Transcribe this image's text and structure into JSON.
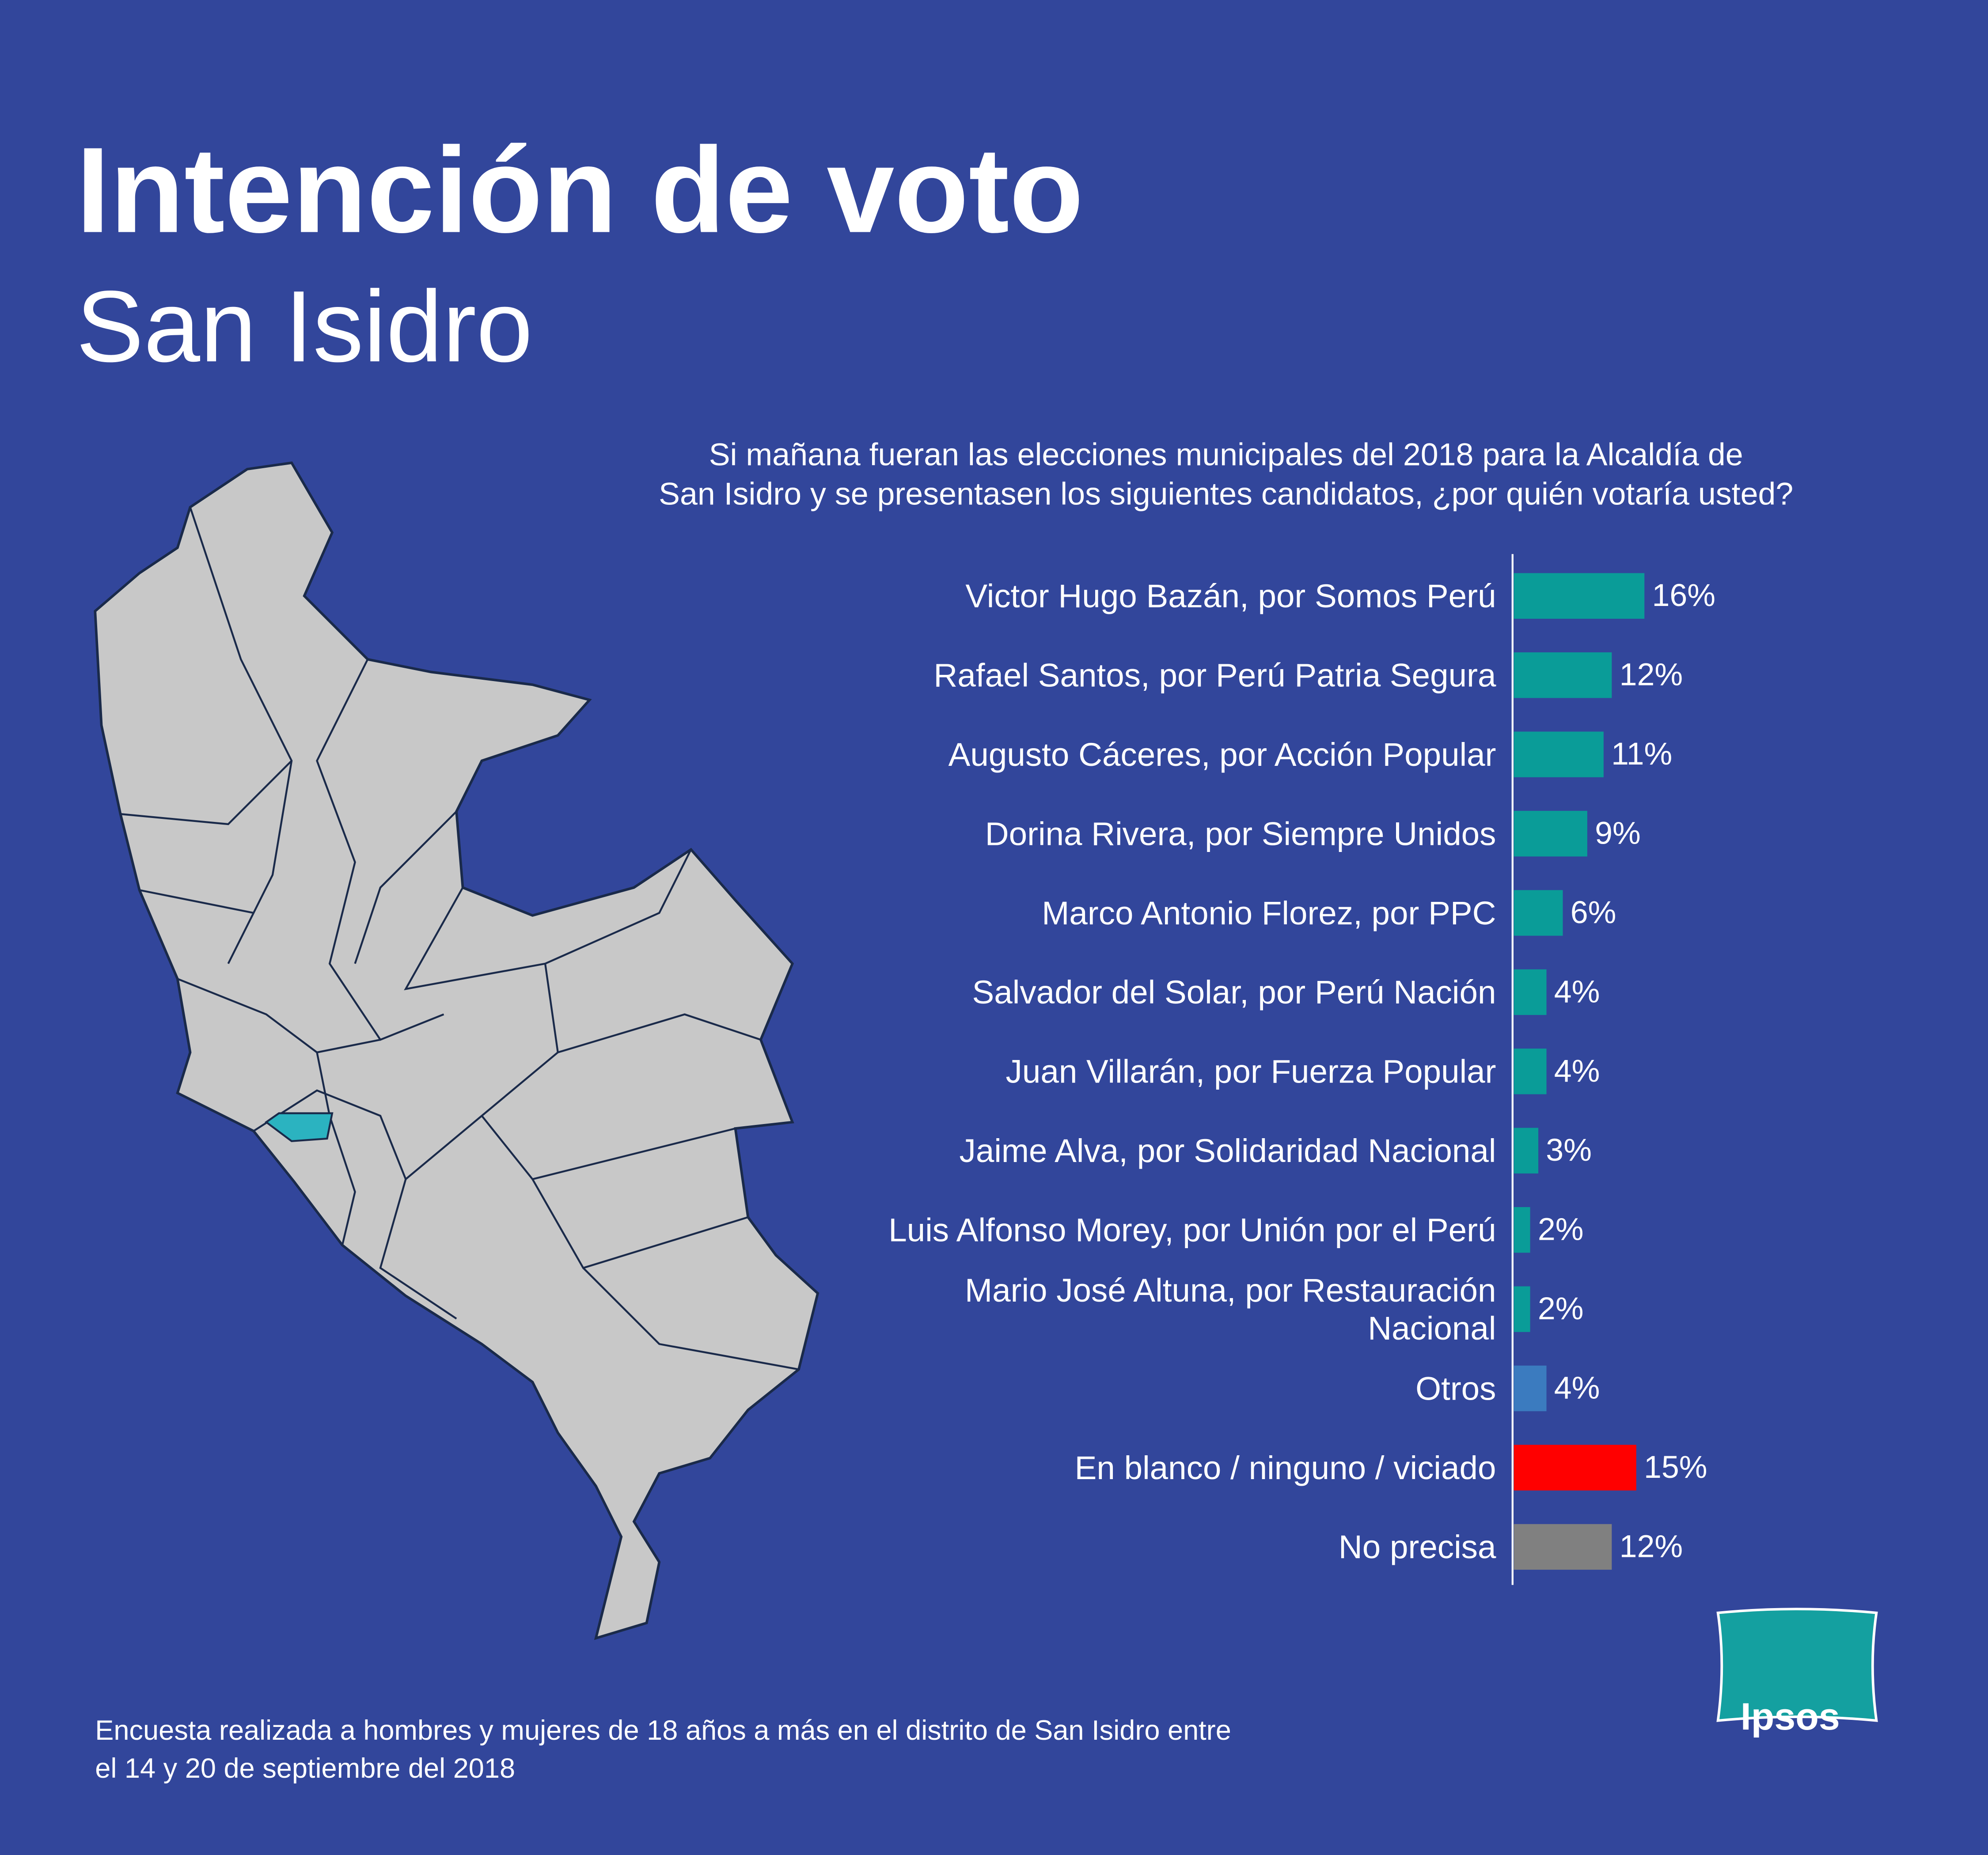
{
  "chart_data": {
    "type": "bar",
    "orientation": "horizontal",
    "title": "Intención de voto",
    "subtitle": "San Isidro",
    "question": [
      "Si mañana fueran las elecciones municipales del 2018 para la Alcaldía de",
      "San Isidro y se presentasen los siguientes candidatos, ¿por quién votaría usted?"
    ],
    "categories": [
      "Victor Hugo Bazán, por Somos Perú",
      "Rafael Santos, por Perú Patria Segura",
      "Augusto Cáceres, por Acción Popular",
      "Dorina Rivera, por Siempre Unidos",
      "Marco Antonio Florez, por PPC",
      "Salvador del Solar, por Perú Nación",
      "Juan Villarán, por Fuerza Popular",
      "Jaime Alva, por Solidaridad Nacional",
      "Luis Alfonso Morey, por Unión por el Perú",
      "Mario José Altuna, por Restauración Nacional",
      "Otros",
      "En blanco / ninguno / viciado",
      "No precisa"
    ],
    "values": [
      16,
      12,
      11,
      9,
      6,
      4,
      4,
      3,
      2,
      2,
      4,
      15,
      12
    ],
    "value_labels": [
      "16%",
      "12%",
      "11%",
      "9%",
      "6%",
      "4%",
      "4%",
      "3%",
      "2%",
      "2%",
      "4%",
      "15%",
      "12%"
    ],
    "colors": [
      "#0a9c98",
      "#0a9c98",
      "#0a9c98",
      "#0a9c98",
      "#0a9c98",
      "#0a9c98",
      "#0a9c98",
      "#0a9c98",
      "#0a9c98",
      "#0a9c98",
      "#3b7bbf",
      "#ff0000",
      "#808080"
    ],
    "xlim": [
      0,
      16
    ]
  },
  "footnote": [
    "Encuesta realizada a hombres y mujeres de 18 años a más en el distrito de San Isidro entre",
    "el 14 y 20 de septiembre del 2018"
  ],
  "logo": "Ipsos"
}
